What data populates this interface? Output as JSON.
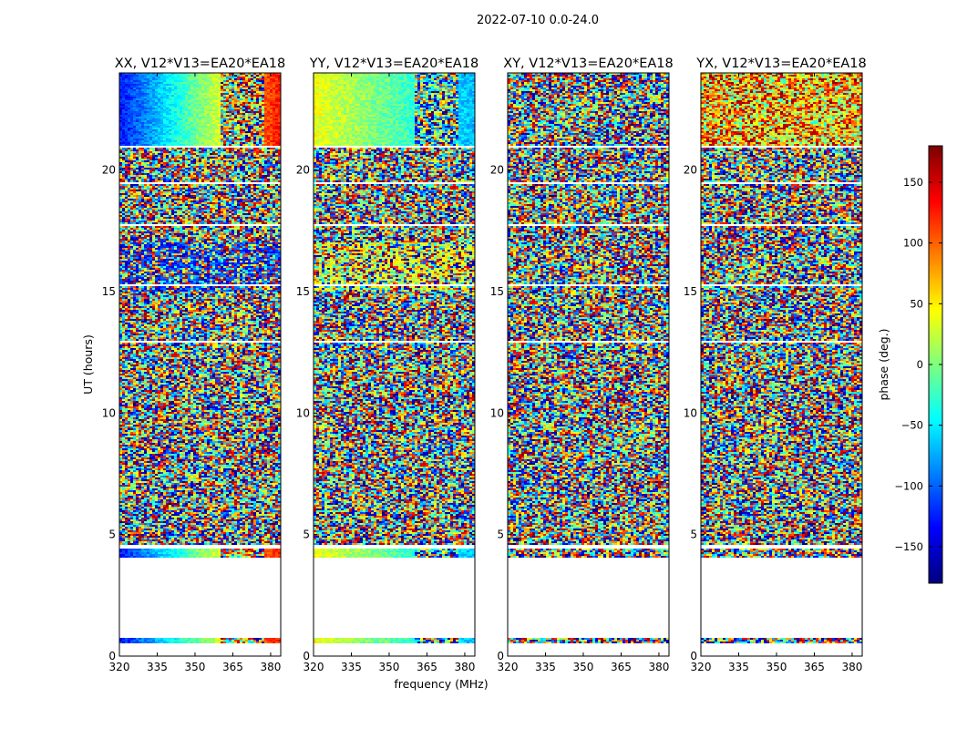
{
  "figure": {
    "suptitle": "2022-07-10 0.0-24.0"
  },
  "chart_data": {
    "type": "heatmap",
    "suptitle": "2022-07-10 0.0-24.0",
    "xlabel": "frequency (MHz)",
    "ylabel": "UT (hours)",
    "xlim": [
      320,
      384
    ],
    "ylim": [
      0,
      24
    ],
    "x_ticks": [
      320,
      335,
      350,
      365,
      380
    ],
    "y_ticks": [
      0,
      5,
      10,
      15,
      20
    ],
    "colorbar": {
      "label": "phase (deg.)",
      "range": [
        -180,
        180
      ],
      "ticks": [
        150,
        100,
        50,
        0,
        -50,
        -100,
        -150
      ],
      "tick_labels": [
        "150",
        "100",
        "50",
        "0",
        "−50",
        "−100",
        "−150"
      ],
      "colormap": "jet"
    },
    "panels": [
      {
        "title": "XX, V12*V13=EA20*EA18",
        "character": "coherent",
        "base_phase": [
          -130,
          130
        ]
      },
      {
        "title": "YY, V12*V13=EA20*EA18",
        "character": "coherent",
        "base_phase": [
          40,
          -70
        ]
      },
      {
        "title": "XY, V12*V13=EA20*EA18",
        "character": "noise",
        "base_phase": [
          0,
          0
        ]
      },
      {
        "title": "YX, V12*V13=EA20*EA18",
        "character": "noise-warm",
        "base_phase": [
          60,
          60
        ]
      }
    ],
    "data_time_ranges_hours": [
      [
        0.5,
        0.75
      ],
      [
        4.05,
        4.4
      ],
      [
        4.55,
        5.5
      ],
      [
        5.5,
        6.5
      ],
      [
        6.5,
        12.9
      ],
      [
        13.0,
        15.2
      ],
      [
        15.3,
        17.7
      ],
      [
        17.8,
        19.4
      ],
      [
        19.5,
        20.9
      ],
      [
        21.0,
        24.0
      ]
    ]
  }
}
